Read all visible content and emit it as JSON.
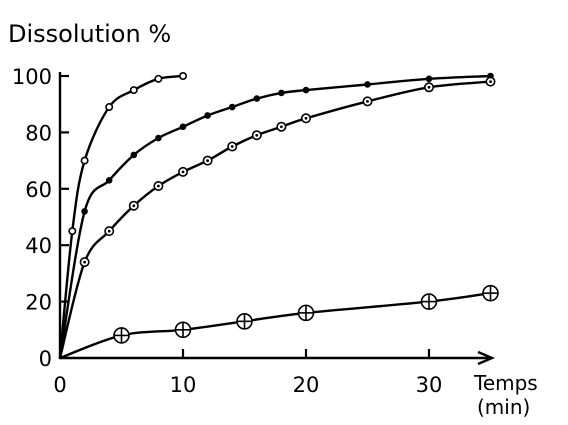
{
  "chart_data": {
    "type": "line",
    "title": "Dissolution %",
    "xlabel": "Temps",
    "xlabel_unit": "(min)",
    "ylabel": "",
    "xlim": [
      0,
      35
    ],
    "ylim": [
      0,
      100
    ],
    "x_ticks": [
      "0",
      "10",
      "20",
      "30"
    ],
    "y_ticks": [
      "0",
      "20",
      "40",
      "60",
      "80",
      "100"
    ],
    "grid": false,
    "legend": "none",
    "series": [
      {
        "marker": "open-circle",
        "points": [
          [
            0,
            0
          ],
          [
            1,
            45
          ],
          [
            2,
            70
          ],
          [
            4,
            89
          ],
          [
            6,
            95
          ],
          [
            8,
            99
          ],
          [
            10,
            100
          ]
        ]
      },
      {
        "marker": "filled-dot",
        "points": [
          [
            0,
            0
          ],
          [
            2,
            52
          ],
          [
            4,
            63
          ],
          [
            6,
            72
          ],
          [
            8,
            78
          ],
          [
            10,
            82
          ],
          [
            12,
            86
          ],
          [
            14,
            89
          ],
          [
            16,
            92
          ],
          [
            18,
            94
          ],
          [
            20,
            95
          ],
          [
            25,
            97
          ],
          [
            30,
            99
          ],
          [
            35,
            100
          ]
        ]
      },
      {
        "marker": "circle-dot",
        "points": [
          [
            0,
            0
          ],
          [
            2,
            34
          ],
          [
            4,
            45
          ],
          [
            6,
            54
          ],
          [
            8,
            61
          ],
          [
            10,
            66
          ],
          [
            12,
            70
          ],
          [
            14,
            75
          ],
          [
            16,
            79
          ],
          [
            18,
            82
          ],
          [
            20,
            85
          ],
          [
            25,
            91
          ],
          [
            30,
            96
          ],
          [
            35,
            98
          ]
        ]
      },
      {
        "marker": "circle-cross",
        "points": [
          [
            0,
            0
          ],
          [
            5,
            8
          ],
          [
            10,
            10
          ],
          [
            15,
            13
          ],
          [
            20,
            16
          ],
          [
            30,
            20
          ],
          [
            35,
            23
          ]
        ]
      }
    ]
  }
}
